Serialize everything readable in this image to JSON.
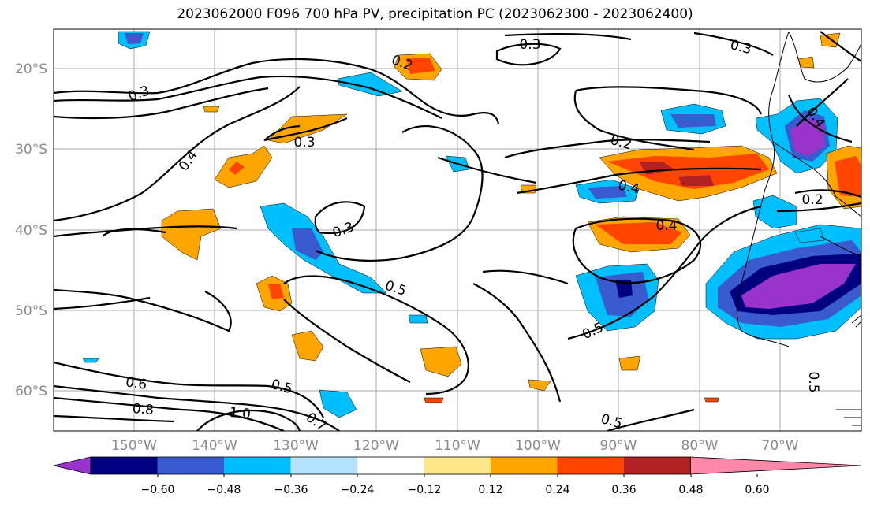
{
  "title": "2023062000 F096 700 hPa PV, precipitation PC (2023062300 - 2023062400)",
  "lat_labels": [
    "20°S",
    "30°S",
    "40°S",
    "50°S",
    "60°S"
  ],
  "lon_labels": [
    "150°W",
    "140°W",
    "130°W",
    "120°W",
    "110°W",
    "100°W",
    "90°W",
    "80°W",
    "70°W"
  ],
  "contour_labels": [
    "0.3",
    "0.2",
    "0.3",
    "0.4",
    "0.3",
    "0.2",
    "0.4",
    "0.3",
    "0.4",
    "0.2",
    "0.5",
    "0.5",
    "0.6",
    "0.5",
    "0.8",
    "1.0",
    "0.7",
    "0.5",
    "0.5",
    "0.3",
    "0.4"
  ],
  "colorbar": {
    "ticks": [
      "−0.60",
      "−0.48",
      "−0.36",
      "−0.24",
      "−0.12",
      "0.12",
      "0.24",
      "0.36",
      "0.48",
      "0.60"
    ],
    "colors": [
      "#9933cc",
      "#000080",
      "#3a5bd0",
      "#00bfff",
      "#b3e3ff",
      "#ffffff",
      "#ffe98a",
      "#ffa500",
      "#ff4500",
      "#b22222",
      "#ff88aa"
    ]
  }
}
